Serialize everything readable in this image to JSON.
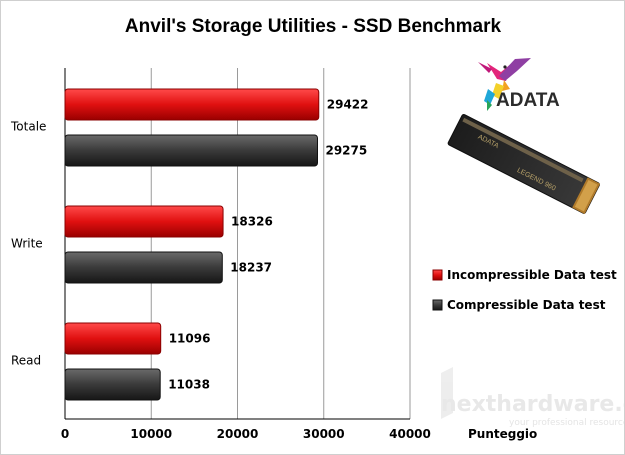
{
  "chart_data": {
    "type": "bar",
    "orientation": "horizontal",
    "title": "Anvil's Storage Utilities - SSD Benchmark",
    "xlabel": "Punteggio",
    "ylabel": "",
    "categories": [
      "Totale",
      "Write",
      "Read"
    ],
    "series": [
      {
        "name": "Incompressible Data test",
        "color": "#e01010",
        "values": [
          29422,
          18326,
          11096
        ]
      },
      {
        "name": "Compressible Data test",
        "color": "#3a3a3a",
        "values": [
          29275,
          18237,
          11038
        ]
      }
    ],
    "xlim": [
      0,
      40000
    ],
    "xticks": [
      "0",
      "10000",
      "20000",
      "30000",
      "40000"
    ],
    "grid": true,
    "legend_position": "right"
  },
  "brand": {
    "logo_text": "ADATA",
    "product_label": "LEGEND 960",
    "product_brand": "ADATA"
  },
  "watermark": {
    "text": "nexthardware.com",
    "sub": "your professional resource"
  }
}
